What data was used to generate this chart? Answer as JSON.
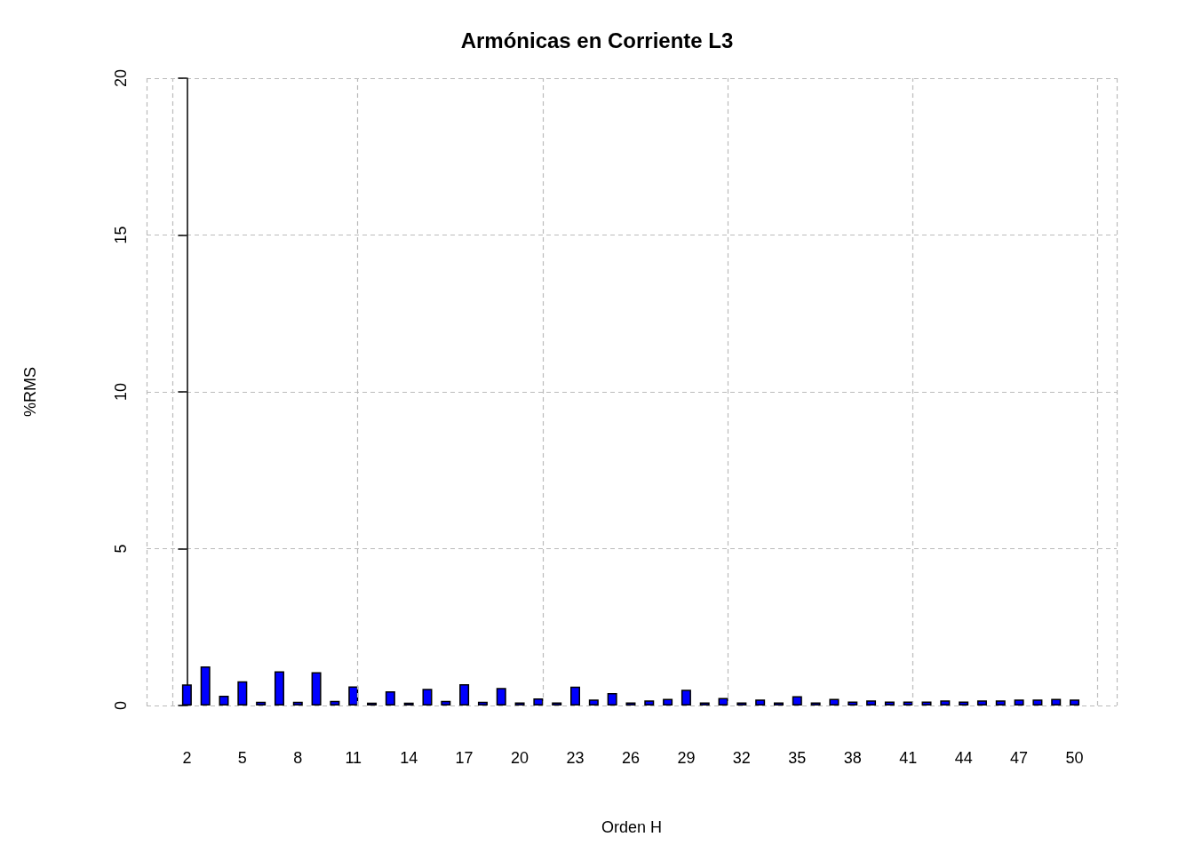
{
  "chart_data": {
    "type": "bar",
    "title": "Armónicas en Corriente L3",
    "xlabel": "Orden H",
    "ylabel": "%RMS",
    "categories": [
      "2",
      null,
      null,
      "5",
      null,
      null,
      "8",
      null,
      null,
      "11",
      null,
      null,
      "14",
      null,
      null,
      "17",
      null,
      null,
      "20",
      null,
      null,
      "23",
      null,
      null,
      "26",
      null,
      null,
      "29",
      null,
      null,
      "32",
      null,
      null,
      "35",
      null,
      null,
      "38",
      null,
      null,
      "41",
      null,
      null,
      "44",
      null,
      null,
      "47",
      null,
      null,
      "50"
    ],
    "values": [
      0.67,
      1.25,
      0.31,
      0.77,
      0.12,
      1.09,
      0.12,
      1.06,
      0.15,
      0.61,
      0.09,
      0.45,
      0.09,
      0.53,
      0.15,
      0.68,
      0.12,
      0.56,
      0.1,
      0.23,
      0.1,
      0.6,
      0.19,
      0.4,
      0.1,
      0.16,
      0.21,
      0.5,
      0.1,
      0.24,
      0.1,
      0.19,
      0.1,
      0.3,
      0.1,
      0.21,
      0.13,
      0.16,
      0.13,
      0.13,
      0.13,
      0.16,
      0.13,
      0.16,
      0.16,
      0.19,
      0.19,
      0.21,
      0.19
    ],
    "color": "#0000ff",
    "ylim": [
      0,
      20
    ],
    "yticks": [
      0,
      5,
      10,
      15,
      20
    ],
    "grid": true
  }
}
